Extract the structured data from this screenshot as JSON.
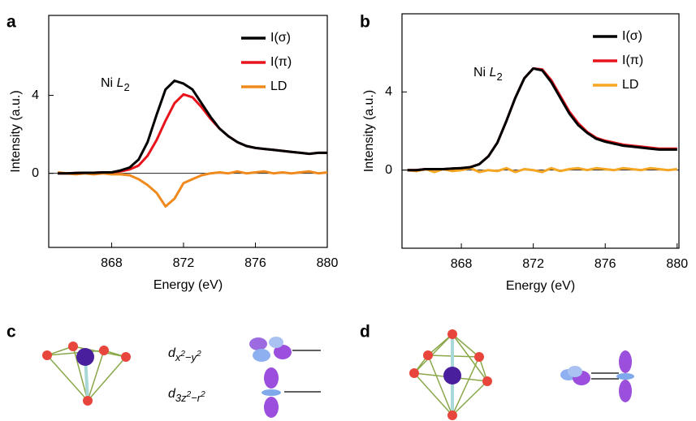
{
  "chart_data": [
    {
      "type": "line",
      "panel_label": "a",
      "annotation": [
        "Ni ",
        "L",
        "2"
      ],
      "x_label": "Energy (eV)",
      "y_label": "Intensity (a.u.)",
      "xlim": [
        864.5,
        880
      ],
      "ylim": [
        -3.8,
        8.1
      ],
      "xticks": [
        868,
        872,
        876,
        880
      ],
      "yticks": [
        0,
        4
      ],
      "legend": "upper right",
      "x": [
        865,
        865.5,
        866,
        866.5,
        867,
        867.5,
        868,
        868.5,
        869,
        869.5,
        870,
        870.5,
        871,
        871.5,
        872,
        872.5,
        873,
        873.5,
        874,
        874.5,
        875,
        875.5,
        876,
        876.5,
        877,
        877.5,
        878,
        878.5,
        879,
        879.5,
        880
      ],
      "series": [
        {
          "name": "I(σ)",
          "color": "#000000",
          "values": [
            0,
            0,
            0.02,
            0.03,
            0.03,
            0.05,
            0.05,
            0.15,
            0.3,
            0.7,
            1.6,
            3.0,
            4.3,
            4.75,
            4.6,
            4.3,
            3.6,
            2.9,
            2.3,
            1.9,
            1.6,
            1.4,
            1.3,
            1.25,
            1.2,
            1.15,
            1.1,
            1.05,
            1.0,
            1.05,
            1.05
          ]
        },
        {
          "name": "I(π)",
          "color": "#e8141b",
          "values": [
            0,
            0,
            0.02,
            0.03,
            0.03,
            0.05,
            0.05,
            0.1,
            0.2,
            0.4,
            0.9,
            1.7,
            2.7,
            3.6,
            4.05,
            3.9,
            3.4,
            2.8,
            2.3,
            1.9,
            1.6,
            1.4,
            1.3,
            1.25,
            1.2,
            1.15,
            1.1,
            1.05,
            1.0,
            1.05,
            1.05
          ]
        },
        {
          "name": "LD",
          "color": "#f08a1e",
          "values": [
            0.05,
            0,
            -0.05,
            0,
            -0.05,
            0,
            -0.05,
            -0.05,
            -0.1,
            -0.3,
            -0.6,
            -1.0,
            -1.7,
            -1.3,
            -0.5,
            -0.3,
            -0.1,
            0,
            0.05,
            0,
            0.1,
            0,
            0.05,
            0.1,
            0,
            0.05,
            0,
            0.05,
            0.1,
            0,
            0.05
          ]
        }
      ]
    },
    {
      "type": "line",
      "panel_label": "b",
      "annotation": [
        "Ni ",
        "L",
        "2"
      ],
      "x_label": "Energy (eV)",
      "y_label": "Intensity (a.u.)",
      "xlim": [
        864.7,
        880.1
      ],
      "ylim": [
        -4,
        8
      ],
      "xticks": [
        868,
        872,
        876,
        880
      ],
      "yticks": [
        0,
        4
      ],
      "legend": "upper right",
      "x": [
        865,
        865.5,
        866,
        866.5,
        867,
        867.5,
        868,
        868.5,
        869,
        869.5,
        870,
        870.5,
        871,
        871.5,
        872,
        872.5,
        873,
        873.5,
        874,
        874.5,
        875,
        875.5,
        876,
        876.5,
        877,
        877.5,
        878,
        878.5,
        879,
        879.5,
        880
      ],
      "series": [
        {
          "name": "I(σ)",
          "color": "#000000",
          "values": [
            0,
            0,
            0.05,
            0.05,
            0.05,
            0.08,
            0.1,
            0.15,
            0.3,
            0.7,
            1.4,
            2.5,
            3.7,
            4.7,
            5.2,
            5.1,
            4.5,
            3.7,
            2.9,
            2.3,
            1.9,
            1.6,
            1.45,
            1.35,
            1.25,
            1.2,
            1.15,
            1.1,
            1.05,
            1.05,
            1.05
          ]
        },
        {
          "name": "I(π)",
          "color": "#e8141b",
          "values": [
            0,
            0,
            0.05,
            0.05,
            0.05,
            0.08,
            0.1,
            0.15,
            0.3,
            0.7,
            1.4,
            2.5,
            3.7,
            4.7,
            5.2,
            5.15,
            4.6,
            3.8,
            3.0,
            2.4,
            1.95,
            1.65,
            1.5,
            1.4,
            1.3,
            1.25,
            1.2,
            1.15,
            1.1,
            1.1,
            1.1
          ]
        },
        {
          "name": "LD",
          "color": "#f5a623",
          "values": [
            0,
            -0.05,
            0.05,
            -0.1,
            0.05,
            -0.05,
            0,
            0.1,
            -0.1,
            0,
            -0.05,
            0.1,
            -0.1,
            0.05,
            0,
            -0.1,
            0.1,
            -0.05,
            0.05,
            0.1,
            0,
            0.1,
            0.05,
            0,
            0.1,
            0.05,
            0,
            0.1,
            0.05,
            0,
            0.05
          ]
        }
      ]
    }
  ],
  "diagrams": {
    "c": {
      "label": "c",
      "orbital_labels": [
        [
          "d",
          "x",
          "2",
          "−y",
          "2"
        ],
        [
          "d",
          "3z",
          "2",
          "−r",
          "2"
        ]
      ]
    },
    "d": {
      "label": "d"
    }
  }
}
